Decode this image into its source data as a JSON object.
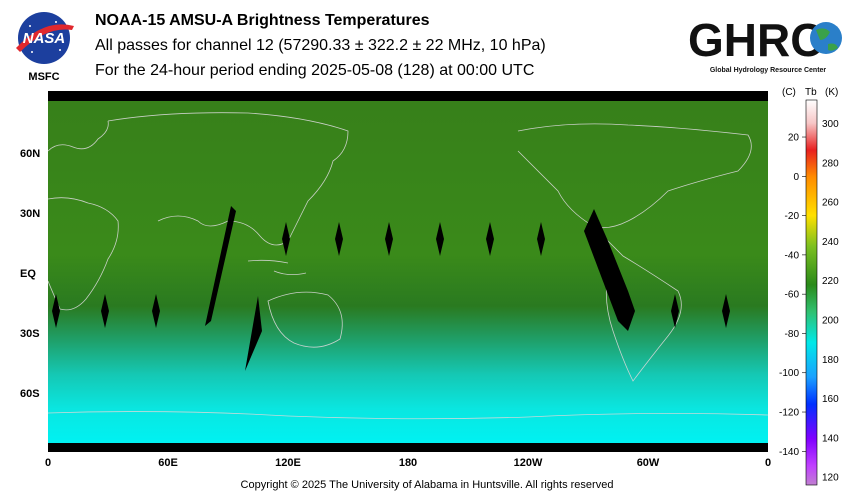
{
  "header": {
    "title": "NOAA-15 AMSU-A Brightness Temperatures",
    "line2": "All passes for channel 12 (57290.33 ± 322.2 ± 22 MHz, 10 hPa)",
    "line3": "For the 24-hour period ending 2025-05-08 (128) at 00:00 UTC"
  },
  "logos": {
    "nasa_text": "NASA",
    "msfc_text": "MSFC",
    "ghrc_text": "GHRC",
    "ghrc_subtitle": "Global Hydrology Resource Center"
  },
  "map": {
    "lat_labels": [
      "60N",
      "30N",
      "EQ",
      "30S",
      "60S"
    ],
    "lon_labels": [
      "0",
      "60E",
      "120E",
      "180",
      "120W",
      "60W",
      "0"
    ]
  },
  "colorbar": {
    "header_c": "(C)",
    "header_tb": "Tb",
    "header_k": "(K)",
    "celsius_ticks": [
      "20",
      "0",
      "-20",
      "-40",
      "-60",
      "-80",
      "-100",
      "-120",
      "-140"
    ],
    "kelvin_ticks": [
      "300",
      "280",
      "260",
      "240",
      "220",
      "200",
      "180",
      "160",
      "140",
      "120"
    ]
  },
  "footer": {
    "copyright": "Copyright © 2025 The University of Alabama in Huntsville.  All rights reserved"
  }
}
